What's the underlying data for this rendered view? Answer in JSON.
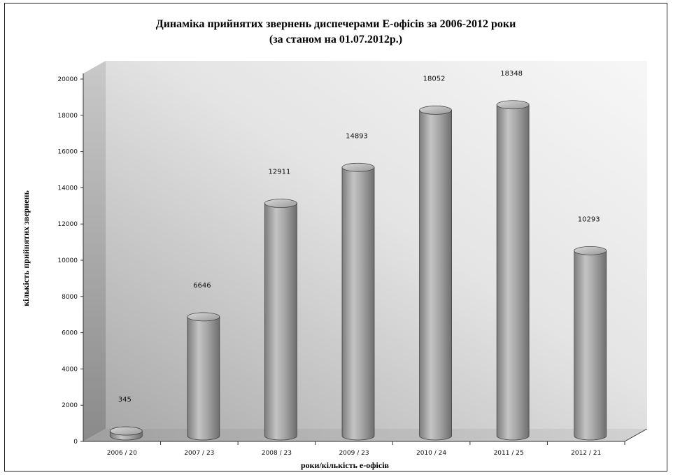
{
  "chart_data": {
    "type": "bar",
    "title": "Динаміка прийнятих звернень диспечерами Е-офісів за 2006-2012 роки",
    "subtitle": "(за станом на 01.07.2012р.)",
    "xlabel": "роки/кількість е-офісів",
    "ylabel": "кількість прийнятих звернень",
    "ylim": [
      0,
      20000
    ],
    "yticks": [
      0,
      2000,
      4000,
      6000,
      8000,
      10000,
      12000,
      14000,
      16000,
      18000,
      20000
    ],
    "categories": [
      "2006 / 20",
      "2007 / 23",
      "2008 / 23",
      "2009 / 23",
      "2010 / 24",
      "2011 / 25",
      "2012 / 21"
    ],
    "values": [
      345,
      6646,
      12911,
      14893,
      18052,
      18348,
      10293
    ],
    "data_labels": [
      "345",
      "6646",
      "12911",
      "14893",
      "18052",
      "18348",
      "10293"
    ],
    "grid": false,
    "legend": "none",
    "colors": {
      "bar": "#9a9a9a",
      "wall": "#e6e6e6",
      "floor": "#bdbdbd"
    }
  }
}
